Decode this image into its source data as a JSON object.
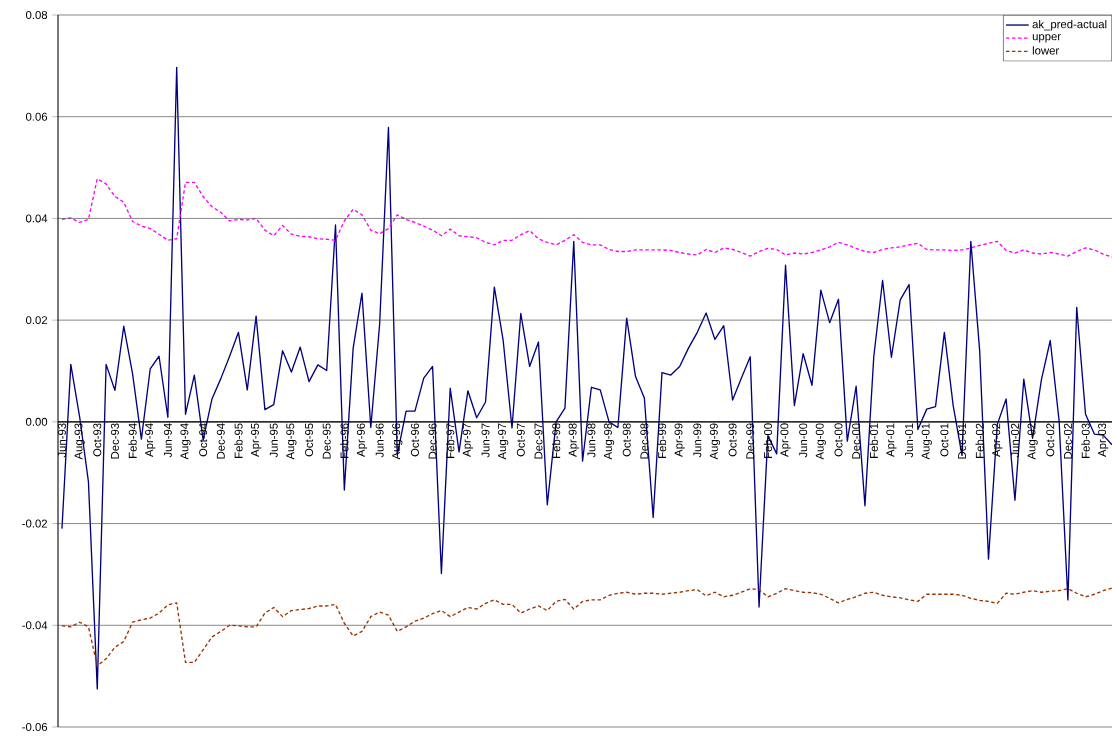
{
  "chart_data": {
    "type": "line",
    "categories": [
      "Jun-93",
      null,
      "Aug-93",
      null,
      "Oct-93",
      null,
      "Dec-93",
      null,
      "Feb-94",
      null,
      "Apr-94",
      null,
      "Jun-94",
      null,
      "Aug-94",
      null,
      "Oct-94",
      null,
      "Dec-94",
      null,
      "Feb-95",
      null,
      "Apr-95",
      null,
      "Jun-95",
      null,
      "Aug-95",
      null,
      "Oct-95",
      null,
      "Dec-95",
      null,
      "Feb-96",
      null,
      "Apr-96",
      null,
      "Jun-96",
      null,
      "Aug-96",
      null,
      "Oct-96",
      null,
      "Dec-96",
      null,
      "Feb-97",
      null,
      "Apr-97",
      null,
      "Jun-97",
      null,
      "Aug-97",
      null,
      "Oct-97",
      null,
      "Dec-97",
      null,
      "Feb-98",
      null,
      "Apr-98",
      null,
      "Jun-98",
      null,
      "Aug-98",
      null,
      "Oct-98",
      null,
      "Dec-98",
      null,
      "Feb-99",
      null,
      "Apr-99",
      null,
      "Jun-99",
      null,
      "Aug-99",
      null,
      "Oct-99",
      null,
      "Dec-99",
      null,
      "Feb-00",
      null,
      "Apr-00",
      null,
      "Jun-00",
      null,
      "Aug-00",
      null,
      "Oct-00",
      null,
      "Dec-00",
      null,
      "Feb-01",
      null,
      "Apr-01",
      null,
      "Jun-01",
      null,
      "Aug-01",
      null,
      "Oct-01",
      null,
      "Dec-01",
      null,
      "Feb-02",
      null,
      "Apr-02",
      null,
      "Jun-02",
      null,
      "Aug-02",
      null,
      "Oct-02",
      null,
      "Dec-02",
      null,
      "Feb-03",
      null,
      "Apr-03",
      null
    ],
    "series": [
      {
        "name": "ak_pred-actual",
        "color": "#000080",
        "line_style": "solid",
        "values": [
          -0.021,
          0.0113,
          0.001,
          -0.0118,
          -0.0525,
          0.0113,
          0.0062,
          0.0188,
          0.0095,
          -0.0034,
          0.0104,
          0.0129,
          0.0009,
          0.0697,
          0.0015,
          0.0092,
          -0.0036,
          0.0045,
          0.0085,
          0.0129,
          0.0176,
          0.0063,
          0.0208,
          0.0024,
          0.0034,
          0.014,
          0.0098,
          0.0147,
          0.0079,
          0.0112,
          0.0101,
          0.0387,
          -0.0134,
          0.0145,
          0.0253,
          -0.0011,
          0.0192,
          0.0579,
          -0.0065,
          0.0021,
          0.0021,
          0.0086,
          0.0109,
          -0.0298,
          0.0066,
          -0.0059,
          0.0061,
          0.0008,
          0.0039,
          0.0265,
          0.016,
          -0.0012,
          0.0213,
          0.0109,
          0.0157,
          -0.0163,
          0.0,
          0.0027,
          0.0355,
          -0.0077,
          0.0068,
          0.0063,
          0.0,
          -0.0011,
          0.0204,
          0.0089,
          0.0047,
          -0.0188,
          0.0097,
          0.0092,
          0.0109,
          0.0145,
          0.0176,
          0.0214,
          0.0162,
          0.0189,
          0.0043,
          0.0086,
          0.0128,
          -0.0364,
          -0.0027,
          -0.0063,
          0.0308,
          0.0032,
          0.0134,
          0.0072,
          0.0259,
          0.0195,
          0.0241,
          -0.0038,
          0.007,
          -0.0165,
          0.0128,
          0.0278,
          0.0127,
          0.024,
          0.027,
          -0.0015,
          0.0025,
          0.003,
          0.0176,
          0.0032,
          -0.0066,
          0.0355,
          0.014,
          -0.027,
          -0.0005,
          0.0045,
          -0.0154,
          0.0084,
          -0.0032,
          0.0083,
          0.016,
          0.0003,
          -0.035,
          0.0225,
          0.0015,
          -0.0024,
          -0.0026,
          -0.0045
        ]
      },
      {
        "name": "upper",
        "color": "#ff00ff",
        "line_style": "dashed",
        "values": [
          0.0398,
          0.0401,
          0.0392,
          0.0398,
          0.0478,
          0.0468,
          0.0443,
          0.0432,
          0.0394,
          0.0385,
          0.038,
          0.0369,
          0.0357,
          0.036,
          0.0471,
          0.0471,
          0.0443,
          0.0423,
          0.0412,
          0.0395,
          0.0398,
          0.0397,
          0.04,
          0.0377,
          0.0366,
          0.0386,
          0.0369,
          0.0365,
          0.0364,
          0.036,
          0.0359,
          0.0357,
          0.0395,
          0.0418,
          0.0407,
          0.0377,
          0.037,
          0.038,
          0.0407,
          0.0398,
          0.0392,
          0.0385,
          0.0377,
          0.0366,
          0.0379,
          0.0366,
          0.0364,
          0.0362,
          0.0353,
          0.0348,
          0.0357,
          0.0357,
          0.0368,
          0.0376,
          0.036,
          0.0353,
          0.0348,
          0.0357,
          0.0368,
          0.0353,
          0.0348,
          0.0348,
          0.0339,
          0.0335,
          0.0335,
          0.0338,
          0.0338,
          0.0338,
          0.0338,
          0.0337,
          0.0333,
          0.033,
          0.0328,
          0.0339,
          0.0333,
          0.0342,
          0.0339,
          0.0333,
          0.0326,
          0.0335,
          0.0341,
          0.0339,
          0.0328,
          0.0332,
          0.033,
          0.0333,
          0.0338,
          0.0344,
          0.0353,
          0.0348,
          0.0341,
          0.0335,
          0.0333,
          0.0339,
          0.0342,
          0.0344,
          0.0348,
          0.0351,
          0.0339,
          0.0338,
          0.0338,
          0.0337,
          0.0338,
          0.0342,
          0.0347,
          0.0351,
          0.0355,
          0.0337,
          0.0332,
          0.0338,
          0.0332,
          0.033,
          0.0333,
          0.033,
          0.0326,
          0.0335,
          0.0342,
          0.0338,
          0.033,
          0.0324
        ]
      },
      {
        "name": "lower",
        "color": "#993300",
        "line_style": "dashed",
        "values": [
          -0.0401,
          -0.0403,
          -0.0394,
          -0.0403,
          -0.048,
          -0.0466,
          -0.0443,
          -0.0432,
          -0.0394,
          -0.0389,
          -0.0386,
          -0.0376,
          -0.036,
          -0.0356,
          -0.0473,
          -0.0473,
          -0.0448,
          -0.0423,
          -0.0412,
          -0.04,
          -0.0401,
          -0.0403,
          -0.0403,
          -0.0376,
          -0.0365,
          -0.0383,
          -0.0371,
          -0.0369,
          -0.0367,
          -0.0362,
          -0.0362,
          -0.0359,
          -0.0396,
          -0.0421,
          -0.0412,
          -0.0383,
          -0.0374,
          -0.038,
          -0.0412,
          -0.0403,
          -0.0392,
          -0.0386,
          -0.0377,
          -0.0371,
          -0.0383,
          -0.0374,
          -0.0365,
          -0.0368,
          -0.0357,
          -0.035,
          -0.0359,
          -0.0359,
          -0.0376,
          -0.0368,
          -0.0362,
          -0.0371,
          -0.0353,
          -0.0349,
          -0.0368,
          -0.0353,
          -0.035,
          -0.035,
          -0.0341,
          -0.0337,
          -0.0335,
          -0.0339,
          -0.0337,
          -0.0337,
          -0.0339,
          -0.0337,
          -0.0335,
          -0.0332,
          -0.033,
          -0.0342,
          -0.0335,
          -0.0344,
          -0.0341,
          -0.0335,
          -0.0328,
          -0.033,
          -0.0344,
          -0.0337,
          -0.0328,
          -0.0332,
          -0.0335,
          -0.0336,
          -0.0339,
          -0.0347,
          -0.0356,
          -0.0349,
          -0.0344,
          -0.0337,
          -0.0335,
          -0.0341,
          -0.0344,
          -0.0346,
          -0.035,
          -0.0353,
          -0.0339,
          -0.0339,
          -0.0339,
          -0.0339,
          -0.0341,
          -0.0347,
          -0.0351,
          -0.0353,
          -0.0357,
          -0.0337,
          -0.0339,
          -0.0335,
          -0.0332,
          -0.0335,
          -0.0333,
          -0.0332,
          -0.0328,
          -0.0337,
          -0.0344,
          -0.0339,
          -0.0332,
          -0.0327
        ]
      }
    ],
    "ylim": [
      -0.06,
      0.08
    ],
    "yticks": [
      {
        "value": -0.06,
        "label": "-0.06"
      },
      {
        "value": -0.04,
        "label": "-0.04"
      },
      {
        "value": -0.02,
        "label": "-0.02"
      },
      {
        "value": 0,
        "label": "0.00"
      },
      {
        "value": 0.02,
        "label": "0.02"
      },
      {
        "value": 0.04,
        "label": "0.04"
      },
      {
        "value": 0.06,
        "label": "0.06"
      },
      {
        "value": 0.08,
        "label": "0.08"
      }
    ],
    "grid": "y",
    "legend": "top right"
  }
}
